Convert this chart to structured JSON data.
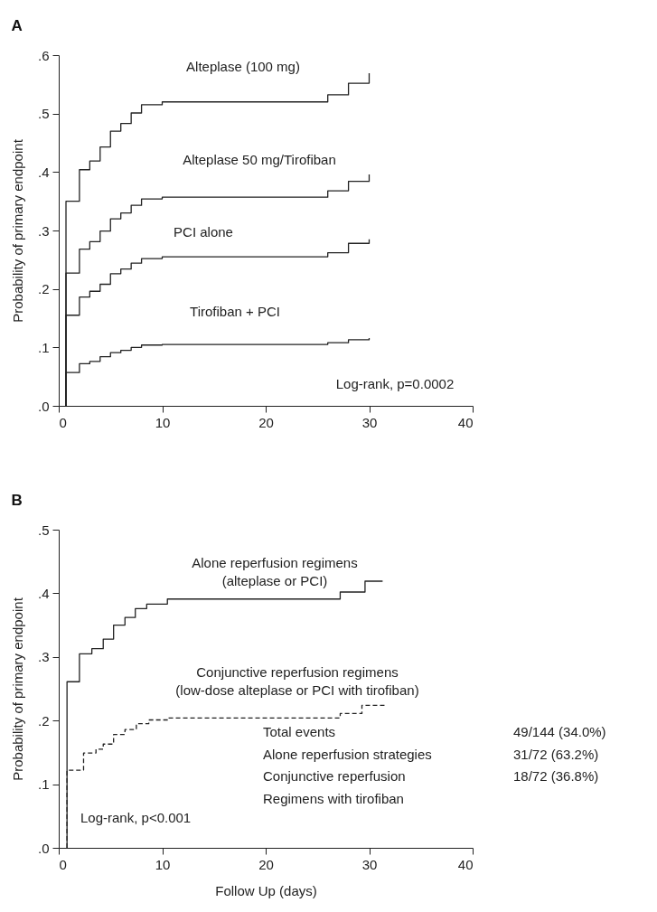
{
  "chart_data": [
    {
      "type": "step",
      "title": "A",
      "ylabel": "Probability of primary endpoint",
      "xlim": [
        0,
        40
      ],
      "ylim": [
        0,
        0.6
      ],
      "xticks": [
        0,
        10,
        20,
        30,
        40
      ],
      "yticks": [
        {
          "value": 0,
          "label": ".0"
        },
        {
          "value": 0.1,
          "label": ".1"
        },
        {
          "value": 0.2,
          "label": ".2"
        },
        {
          "value": 0.3,
          "label": ".3"
        },
        {
          "value": 0.4,
          "label": ".4"
        },
        {
          "value": 0.5,
          "label": ".5"
        },
        {
          "value": 0.6,
          "label": ".6"
        }
      ],
      "series": [
        {
          "name": "Alteplase (100 mg)",
          "color": "#222222",
          "x": [
            0.7,
            0.7,
            2,
            3,
            4,
            5,
            6,
            7,
            8,
            10,
            26,
            28,
            30
          ],
          "values": [
            0,
            0.35,
            0.404,
            0.419,
            0.443,
            0.47,
            0.483,
            0.501,
            0.515,
            0.52,
            0.532,
            0.552,
            0.569
          ]
        },
        {
          "name": "Alteplase 50 mg/Tirofiban",
          "color": "#222222",
          "x": [
            0.7,
            0.7,
            2,
            3,
            4,
            5,
            6,
            7,
            8,
            10,
            26,
            28,
            30
          ],
          "values": [
            0,
            0.227,
            0.268,
            0.281,
            0.299,
            0.32,
            0.33,
            0.343,
            0.354,
            0.357,
            0.368,
            0.384,
            0.396
          ]
        },
        {
          "name": "PCI alone",
          "color": "#222222",
          "x": [
            0.7,
            0.7,
            2,
            3,
            4,
            5,
            6,
            7,
            8,
            10,
            26,
            28,
            30
          ],
          "values": [
            0,
            0.155,
            0.186,
            0.196,
            0.208,
            0.226,
            0.234,
            0.244,
            0.252,
            0.255,
            0.262,
            0.278,
            0.285
          ]
        },
        {
          "name": "Tirofiban + PCI",
          "color": "#222222",
          "x": [
            0.7,
            0.7,
            2,
            3,
            4,
            5,
            6,
            7,
            8,
            10,
            26,
            28,
            30
          ],
          "values": [
            0,
            0.057,
            0.072,
            0.076,
            0.084,
            0.091,
            0.095,
            0.1,
            0.104,
            0.105,
            0.108,
            0.113,
            0.116
          ]
        }
      ],
      "annotations": [
        "Log-rank,  p=0.0002"
      ]
    },
    {
      "type": "step",
      "title": "B",
      "xlabel": "Follow Up (days)",
      "ylabel": "Probability of primary endpoint",
      "xlim": [
        0,
        40
      ],
      "ylim": [
        0,
        0.5
      ],
      "xticks": [
        0,
        10,
        20,
        30,
        40
      ],
      "yticks": [
        {
          "value": 0,
          "label": ".0"
        },
        {
          "value": 0.1,
          "label": ".1"
        },
        {
          "value": 0.2,
          "label": ".2"
        },
        {
          "value": 0.3,
          "label": ".3"
        },
        {
          "value": 0.4,
          "label": ".4"
        },
        {
          "value": 0.5,
          "label": ".5"
        }
      ],
      "series": [
        {
          "name": "Alone reperfusion regimens\n(alteplase or PCI)",
          "color": "#222222",
          "line_style": "solid",
          "x": [
            0.8,
            0.8,
            2,
            3.2,
            4.3,
            5.3,
            6.4,
            7.4,
            8.5,
            10.5,
            27.2,
            29.6,
            31.3
          ],
          "values": [
            0,
            0.261,
            0.305,
            0.313,
            0.328,
            0.35,
            0.362,
            0.376,
            0.383,
            0.391,
            0.402,
            0.419,
            0.419
          ]
        },
        {
          "name": "Conjunctive reperfusion regimens\n(low-dose alteplase or PCI with tirofiban)",
          "color": "#222222",
          "line_style": "dashed",
          "x": [
            0.8,
            0.8,
            2.4,
            3.6,
            4.3,
            5.3,
            6.4,
            7.5,
            8.7,
            10.6,
            27.2,
            29.3,
            31.6
          ],
          "values": [
            0,
            0.122,
            0.149,
            0.155,
            0.163,
            0.178,
            0.186,
            0.195,
            0.201,
            0.204,
            0.211,
            0.224,
            0.224
          ]
        }
      ],
      "annotations": [
        "Log-rank, p<0.001",
        "Total events\nAlone reperfusion strategies\nConjunctive reperfusion\nRegimens with tirofiban",
        "49/144 (34.0%)\n31/72 (63.2%)\n18/72 (36.8%)"
      ]
    }
  ]
}
